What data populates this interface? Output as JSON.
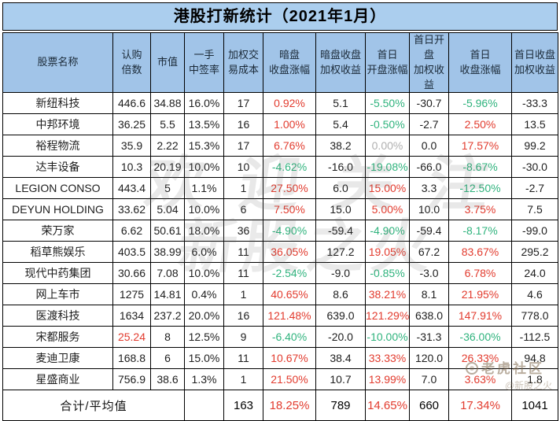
{
  "title": "港股打新统计（2021年1月）",
  "colors": {
    "title_bg": "#abceee",
    "header_bg": "#a1c4e8",
    "positive_red": "#e23b2e",
    "negative_green": "#2fb37d",
    "neutral_gray": "#b0b0b0",
    "border": "#000000"
  },
  "chart_data": {
    "type": "table",
    "title": "港股打新统计（2021年1月）",
    "columns": [
      "股票名称",
      "认购倍数",
      "市值",
      "一手中签率",
      "加权交易成本",
      "暗盘收盘涨幅",
      "暗盘收盘加权收益",
      "首日开盘涨幅",
      "首日开盘加权收益",
      "首日收盘涨幅",
      "首日收盘加权收益"
    ],
    "header_display": [
      "股票名称",
      "认购\n倍数",
      "市值",
      "一手\n中签率",
      "加权交\n易成本",
      "暗盘\n收盘涨幅",
      "暗盘收盘\n加权收益",
      "首日\n开盘涨幅",
      "首日开盘\n加权收益",
      "首日\n收盘涨幅",
      "首日收盘\n加权收益"
    ],
    "rows": [
      {
        "name": "新纽科技",
        "cells": [
          {
            "v": "446.6"
          },
          {
            "v": "34.88"
          },
          {
            "v": "16.0%"
          },
          {
            "v": "17"
          },
          {
            "v": "0.92%",
            "c": "red"
          },
          {
            "v": "5.1"
          },
          {
            "v": "-5.50%",
            "c": "green"
          },
          {
            "v": "-30.7"
          },
          {
            "v": "-5.96%",
            "c": "green"
          },
          {
            "v": "-33.3"
          }
        ]
      },
      {
        "name": "中邦环境",
        "cells": [
          {
            "v": "36.25"
          },
          {
            "v": "5.5"
          },
          {
            "v": "13.5%"
          },
          {
            "v": "16"
          },
          {
            "v": "1.00%",
            "c": "red"
          },
          {
            "v": "5.4"
          },
          {
            "v": "-0.50%",
            "c": "green"
          },
          {
            "v": "-2.7"
          },
          {
            "v": "2.50%",
            "c": "red"
          },
          {
            "v": "13.5"
          }
        ]
      },
      {
        "name": "裕程物流",
        "cells": [
          {
            "v": "35.9"
          },
          {
            "v": "2.22"
          },
          {
            "v": "15.3%"
          },
          {
            "v": "17"
          },
          {
            "v": "6.76%",
            "c": "red"
          },
          {
            "v": "38.2"
          },
          {
            "v": "0.00%",
            "c": "gray"
          },
          {
            "v": "0.0"
          },
          {
            "v": "17.57%",
            "c": "red"
          },
          {
            "v": "99.2"
          }
        ]
      },
      {
        "name": "达丰设备",
        "cells": [
          {
            "v": "10.3"
          },
          {
            "v": "20.19"
          },
          {
            "v": "10.0%"
          },
          {
            "v": "10"
          },
          {
            "v": "-4.62%",
            "c": "green"
          },
          {
            "v": "-16.0"
          },
          {
            "v": "-19.08%",
            "c": "green"
          },
          {
            "v": "-66.0"
          },
          {
            "v": "-8.67%",
            "c": "green"
          },
          {
            "v": "-30.0"
          }
        ]
      },
      {
        "name": "LEGION CONSO",
        "cells": [
          {
            "v": "443.4"
          },
          {
            "v": "5"
          },
          {
            "v": "1.1%"
          },
          {
            "v": "1"
          },
          {
            "v": "27.50%",
            "c": "red"
          },
          {
            "v": "6.0"
          },
          {
            "v": "15.00%",
            "c": "red"
          },
          {
            "v": "3.3"
          },
          {
            "v": "-12.50%",
            "c": "green"
          },
          {
            "v": "-2.7"
          }
        ]
      },
      {
        "name": "DEYUN HOLDING",
        "cells": [
          {
            "v": "33.62"
          },
          {
            "v": "5.04"
          },
          {
            "v": "10.0%"
          },
          {
            "v": "6"
          },
          {
            "v": "7.50%",
            "c": "red"
          },
          {
            "v": "15.0"
          },
          {
            "v": "5.00%",
            "c": "red"
          },
          {
            "v": "10.0"
          },
          {
            "v": "3.75%",
            "c": "red"
          },
          {
            "v": "7.5"
          }
        ]
      },
      {
        "name": "荣万家",
        "cells": [
          {
            "v": "6.62"
          },
          {
            "v": "50.61"
          },
          {
            "v": "18.0%"
          },
          {
            "v": "36"
          },
          {
            "v": "-4.90%",
            "c": "green"
          },
          {
            "v": "-59.4"
          },
          {
            "v": "-4.90%",
            "c": "green"
          },
          {
            "v": "-59.4"
          },
          {
            "v": "-8.17%",
            "c": "green"
          },
          {
            "v": "-99.0"
          }
        ]
      },
      {
        "name": "稻草熊娱乐",
        "cells": [
          {
            "v": "403.5"
          },
          {
            "v": "38.99"
          },
          {
            "v": "6.0%"
          },
          {
            "v": "11"
          },
          {
            "v": "36.05%",
            "c": "red"
          },
          {
            "v": "127.2"
          },
          {
            "v": "19.05%",
            "c": "red"
          },
          {
            "v": "67.2"
          },
          {
            "v": "83.67%",
            "c": "red"
          },
          {
            "v": "295.2"
          }
        ]
      },
      {
        "name": "现代中药集团",
        "cells": [
          {
            "v": "30.66"
          },
          {
            "v": "7.08"
          },
          {
            "v": "10.0%"
          },
          {
            "v": "11"
          },
          {
            "v": "-2.54%",
            "c": "green"
          },
          {
            "v": "-9.0"
          },
          {
            "v": "-0.85%",
            "c": "green"
          },
          {
            "v": "-3.0"
          },
          {
            "v": "6.78%",
            "c": "red"
          },
          {
            "v": "24.0"
          }
        ]
      },
      {
        "name": "网上车市",
        "cells": [
          {
            "v": "1275"
          },
          {
            "v": "14.81"
          },
          {
            "v": "0.4%"
          },
          {
            "v": "1"
          },
          {
            "v": "40.65%",
            "c": "red"
          },
          {
            "v": "8.6"
          },
          {
            "v": "38.21%",
            "c": "red"
          },
          {
            "v": "8.1"
          },
          {
            "v": "21.95%",
            "c": "red"
          },
          {
            "v": "4.6"
          }
        ]
      },
      {
        "name": "医渡科技",
        "cells": [
          {
            "v": "1634"
          },
          {
            "v": "237.2"
          },
          {
            "v": "20.0%"
          },
          {
            "v": "16"
          },
          {
            "v": "121.48%",
            "c": "red"
          },
          {
            "v": "639.0"
          },
          {
            "v": "121.29%",
            "c": "red"
          },
          {
            "v": "638.0"
          },
          {
            "v": "147.91%",
            "c": "red"
          },
          {
            "v": "778.0"
          }
        ]
      },
      {
        "name": "宋都服务",
        "cells": [
          {
            "v": "25.24",
            "c": "red"
          },
          {
            "v": "8"
          },
          {
            "v": "12.5%"
          },
          {
            "v": "9"
          },
          {
            "v": "-6.40%",
            "c": "green"
          },
          {
            "v": "-20.0"
          },
          {
            "v": "-10.00%",
            "c": "green"
          },
          {
            "v": "-31.3"
          },
          {
            "v": "-36.00%",
            "c": "green"
          },
          {
            "v": "-112.5"
          }
        ]
      },
      {
        "name": "麦迪卫康",
        "cells": [
          {
            "v": "168.8"
          },
          {
            "v": "6"
          },
          {
            "v": "15.0%"
          },
          {
            "v": "11"
          },
          {
            "v": "10.67%",
            "c": "red"
          },
          {
            "v": "38.4"
          },
          {
            "v": "33.33%",
            "c": "red"
          },
          {
            "v": "120.0"
          },
          {
            "v": "26.33%",
            "c": "red"
          },
          {
            "v": "94.8"
          }
        ]
      },
      {
        "name": "星盛商业",
        "cells": [
          {
            "v": "756.9"
          },
          {
            "v": "38.6"
          },
          {
            "v": "1.3%"
          },
          {
            "v": "1"
          },
          {
            "v": "21.50%",
            "c": "red"
          },
          {
            "v": "10.7"
          },
          {
            "v": "13.99%",
            "c": "red"
          },
          {
            "v": "7.0"
          },
          {
            "v": "3.63%",
            "c": "red"
          },
          {
            "v": "1.8"
          }
        ]
      }
    ],
    "footer": {
      "label": "合计/平均值",
      "cells": [
        {
          "v": ""
        },
        {
          "v": "163"
        },
        {
          "v": "18.25%",
          "c": "red"
        },
        {
          "v": "789"
        },
        {
          "v": "14.65%",
          "c": "red"
        },
        {
          "v": "660"
        },
        {
          "v": "17.34%",
          "c": "red"
        },
        {
          "v": "1041"
        }
      ]
    }
  },
  "watermarks": {
    "center_line1": "欢迎关注",
    "center_line2": "新股之火",
    "corner_brand": "老虎社区",
    "corner_handle": "@新股之火"
  }
}
